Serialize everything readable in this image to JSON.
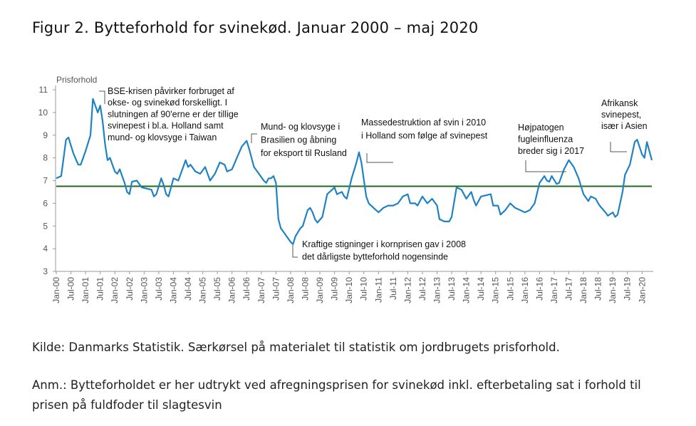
{
  "figure": {
    "title": "Figur 2. Bytteforhold for svinekød. Januar 2000 – maj 2020",
    "source": "Kilde: Danmarks Statistik. Særkørsel på materialet til statistik om jordbrugets prisforhold.",
    "note": "Anm.: Bytteforholdet er her udtrykt ved afregningsprisen for svinekød inkl. efterbetaling sat i forhold til prisen på fuldfoder til slagtesvin"
  },
  "chart_data": {
    "type": "line",
    "ylabel": "Prisforhold",
    "ylim": [
      3,
      11
    ],
    "yticks": [
      3,
      4,
      5,
      6,
      7,
      8,
      9,
      10,
      11
    ],
    "x_tick_labels": [
      "Jan-00",
      "Jul-00",
      "Jan-01",
      "Jul-01",
      "Jan-02",
      "Jul-02",
      "Jan-03",
      "Jul-03",
      "Jan-04",
      "Jul-04",
      "Jan-05",
      "Jul-05",
      "Jan-06",
      "Jul-06",
      "Jan-07",
      "Jul-07",
      "Jan-08",
      "Jul-08",
      "Jan-09",
      "Jul-09",
      "Jan-10",
      "Jul-10",
      "Jan-11",
      "Jul-11",
      "Jan-12",
      "Jul-12",
      "Jan-13",
      "Jul-13",
      "Jan-14",
      "Jul-14",
      "Jan-15",
      "Jul-15",
      "Jan-16",
      "Jul-16",
      "Jan-17",
      "Jul-17",
      "Jan-18",
      "Jul-18",
      "Jan-19",
      "Jul-19",
      "Jan-20"
    ],
    "reference_line": {
      "value": 6.75,
      "color": "#1e6b1e"
    },
    "line_color": "#1f82c4",
    "series": [
      {
        "points": [
          [
            "2000-01",
            7.1
          ],
          [
            "2000-03",
            7.2
          ],
          [
            "2000-05",
            8.8
          ],
          [
            "2000-06",
            8.9
          ],
          [
            "2000-08",
            8.2
          ],
          [
            "2000-10",
            7.7
          ],
          [
            "2000-11",
            7.7
          ],
          [
            "2001-01",
            8.3
          ],
          [
            "2001-03",
            9.0
          ],
          [
            "2001-04",
            10.6
          ],
          [
            "2001-05",
            10.3
          ],
          [
            "2001-06",
            10.0
          ],
          [
            "2001-07",
            10.3
          ],
          [
            "2001-08",
            9.6
          ],
          [
            "2001-09",
            8.6
          ],
          [
            "2001-10",
            7.9
          ],
          [
            "2001-11",
            8.0
          ],
          [
            "2002-01",
            7.4
          ],
          [
            "2002-02",
            7.3
          ],
          [
            "2002-03",
            7.5
          ],
          [
            "2002-05",
            6.9
          ],
          [
            "2002-06",
            6.5
          ],
          [
            "2002-07",
            6.4
          ],
          [
            "2002-08",
            6.95
          ],
          [
            "2002-10",
            7.0
          ],
          [
            "2002-12",
            6.7
          ],
          [
            "2003-02",
            6.65
          ],
          [
            "2003-04",
            6.6
          ],
          [
            "2003-05",
            6.3
          ],
          [
            "2003-06",
            6.4
          ],
          [
            "2003-08",
            7.1
          ],
          [
            "2003-09",
            6.8
          ],
          [
            "2003-10",
            6.4
          ],
          [
            "2003-11",
            6.3
          ],
          [
            "2004-01",
            7.1
          ],
          [
            "2004-03",
            7.0
          ],
          [
            "2004-05",
            7.6
          ],
          [
            "2004-06",
            7.9
          ],
          [
            "2004-07",
            7.6
          ],
          [
            "2004-08",
            7.7
          ],
          [
            "2004-10",
            7.4
          ],
          [
            "2004-12",
            7.3
          ],
          [
            "2005-02",
            7.6
          ],
          [
            "2005-03",
            7.3
          ],
          [
            "2005-04",
            7.0
          ],
          [
            "2005-06",
            7.3
          ],
          [
            "2005-08",
            7.8
          ],
          [
            "2005-10",
            7.7
          ],
          [
            "2005-11",
            7.4
          ],
          [
            "2006-01",
            7.5
          ],
          [
            "2006-03",
            8.0
          ],
          [
            "2006-05",
            8.5
          ],
          [
            "2006-07",
            8.75
          ],
          [
            "2006-08",
            8.4
          ],
          [
            "2006-10",
            7.6
          ],
          [
            "2006-12",
            7.3
          ],
          [
            "2007-02",
            7.0
          ],
          [
            "2007-03",
            6.9
          ],
          [
            "2007-04",
            7.1
          ],
          [
            "2007-05",
            7.1
          ],
          [
            "2007-06",
            7.2
          ],
          [
            "2007-07",
            6.9
          ],
          [
            "2007-08",
            5.3
          ],
          [
            "2007-09",
            4.9
          ],
          [
            "2007-11",
            4.6
          ],
          [
            "2008-01",
            4.3
          ],
          [
            "2008-02",
            4.2
          ],
          [
            "2008-03",
            4.55
          ],
          [
            "2008-05",
            4.9
          ],
          [
            "2008-06",
            5.0
          ],
          [
            "2008-08",
            5.7
          ],
          [
            "2008-09",
            5.8
          ],
          [
            "2008-10",
            5.6
          ],
          [
            "2008-11",
            5.3
          ],
          [
            "2008-12",
            5.15
          ],
          [
            "2009-02",
            5.4
          ],
          [
            "2009-04",
            6.4
          ],
          [
            "2009-06",
            6.6
          ],
          [
            "2009-07",
            6.7
          ],
          [
            "2009-08",
            6.4
          ],
          [
            "2009-10",
            6.5
          ],
          [
            "2009-11",
            6.3
          ],
          [
            "2009-12",
            6.2
          ],
          [
            "2010-02",
            7.1
          ],
          [
            "2010-04",
            7.8
          ],
          [
            "2010-05",
            8.25
          ],
          [
            "2010-06",
            7.8
          ],
          [
            "2010-08",
            6.3
          ],
          [
            "2010-09",
            6.0
          ],
          [
            "2010-11",
            5.8
          ],
          [
            "2011-01",
            5.6
          ],
          [
            "2011-03",
            5.8
          ],
          [
            "2011-05",
            5.9
          ],
          [
            "2011-07",
            5.9
          ],
          [
            "2011-09",
            6.0
          ],
          [
            "2011-11",
            6.3
          ],
          [
            "2012-01",
            6.4
          ],
          [
            "2012-02",
            6.0
          ],
          [
            "2012-04",
            6.0
          ],
          [
            "2012-05",
            5.9
          ],
          [
            "2012-07",
            6.3
          ],
          [
            "2012-09",
            6.0
          ],
          [
            "2012-11",
            6.2
          ],
          [
            "2013-01",
            5.9
          ],
          [
            "2013-02",
            5.3
          ],
          [
            "2013-04",
            5.2
          ],
          [
            "2013-06",
            5.2
          ],
          [
            "2013-07",
            5.4
          ],
          [
            "2013-09",
            6.7
          ],
          [
            "2013-11",
            6.6
          ],
          [
            "2014-01",
            6.2
          ],
          [
            "2014-03",
            6.5
          ],
          [
            "2014-04",
            6.15
          ],
          [
            "2014-05",
            5.9
          ],
          [
            "2014-07",
            6.3
          ],
          [
            "2014-09",
            6.35
          ],
          [
            "2014-11",
            6.4
          ],
          [
            "2014-12",
            5.9
          ],
          [
            "2015-02",
            5.9
          ],
          [
            "2015-03",
            5.5
          ],
          [
            "2015-05",
            5.7
          ],
          [
            "2015-07",
            6.0
          ],
          [
            "2015-09",
            5.8
          ],
          [
            "2015-11",
            5.7
          ],
          [
            "2016-01",
            5.6
          ],
          [
            "2016-03",
            5.7
          ],
          [
            "2016-05",
            6.0
          ],
          [
            "2016-07",
            6.9
          ],
          [
            "2016-09",
            7.2
          ],
          [
            "2016-10",
            7.0
          ],
          [
            "2016-11",
            6.95
          ],
          [
            "2016-12",
            7.2
          ],
          [
            "2017-02",
            6.85
          ],
          [
            "2017-03",
            6.9
          ],
          [
            "2017-05",
            7.5
          ],
          [
            "2017-07",
            7.9
          ],
          [
            "2017-09",
            7.6
          ],
          [
            "2017-11",
            7.1
          ],
          [
            "2018-01",
            6.4
          ],
          [
            "2018-03",
            6.1
          ],
          [
            "2018-04",
            6.3
          ],
          [
            "2018-06",
            6.2
          ],
          [
            "2018-07",
            6.0
          ],
          [
            "2018-08",
            5.85
          ],
          [
            "2018-10",
            5.6
          ],
          [
            "2018-11",
            5.45
          ],
          [
            "2019-01",
            5.6
          ],
          [
            "2019-02",
            5.4
          ],
          [
            "2019-03",
            5.5
          ],
          [
            "2019-05",
            6.5
          ],
          [
            "2019-06",
            7.25
          ],
          [
            "2019-08",
            7.7
          ],
          [
            "2019-10",
            8.7
          ],
          [
            "2019-11",
            8.8
          ],
          [
            "2020-01",
            8.15
          ],
          [
            "2020-02",
            8.0
          ],
          [
            "2020-03",
            8.7
          ],
          [
            "2020-05",
            7.9
          ]
        ]
      }
    ],
    "annotations": [
      {
        "lines": [
          "BSE-krisen påvirker forbruget af",
          "okse- og svinekød  forskelligt.  I",
          "slutningen  af 90'erne er der tillige",
          "svinepest  i bl.a. Holland samt",
          "mund- og klovsyge  i Taiwan"
        ]
      },
      {
        "lines": [
          "Mund- og klovsyge i",
          "Brasilien og åbning",
          "for eksport til Rusland"
        ]
      },
      {
        "lines": [
          "Massedestruktion  af svin  i 2010",
          "i Holland som følge  af svinepest"
        ]
      },
      {
        "lines": [
          "Højpatogen",
          "fugleinfluenza",
          "breder sig i 2017"
        ]
      },
      {
        "lines": [
          "Afrikansk",
          "svinepest,",
          "især i Asien"
        ]
      },
      {
        "lines": [
          "Kraftige  stigninger  i kornprisen gav i 2008",
          "det dårligste  bytteforhold  nogensinde"
        ]
      }
    ]
  }
}
